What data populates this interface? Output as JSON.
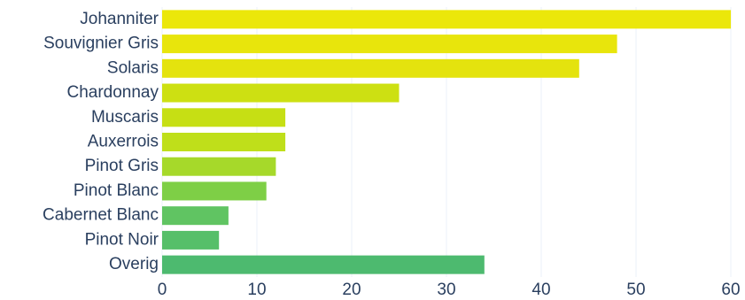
{
  "chart_data": {
    "type": "hbar",
    "categories": [
      "Johanniter",
      "Souvignier Gris",
      "Solaris",
      "Chardonnay",
      "Muscaris",
      "Auxerrois",
      "Pinot Gris",
      "Pinot Blanc",
      "Cabernet Blanc",
      "Pinot Noir",
      "Overig"
    ],
    "values": [
      60,
      48,
      44,
      25,
      13,
      13,
      12,
      11,
      7,
      6,
      34
    ],
    "colors": [
      "#ebe70a",
      "#e8e50c",
      "#e4e30e",
      "#cde012",
      "#c6df14",
      "#bfdf1a",
      "#a6d92a",
      "#7ecf46",
      "#60c462",
      "#56bf69",
      "#4dba6f"
    ],
    "xlim": [
      0,
      60
    ],
    "xticks": [
      0,
      10,
      20,
      30,
      40,
      50,
      60
    ],
    "grid": true
  }
}
